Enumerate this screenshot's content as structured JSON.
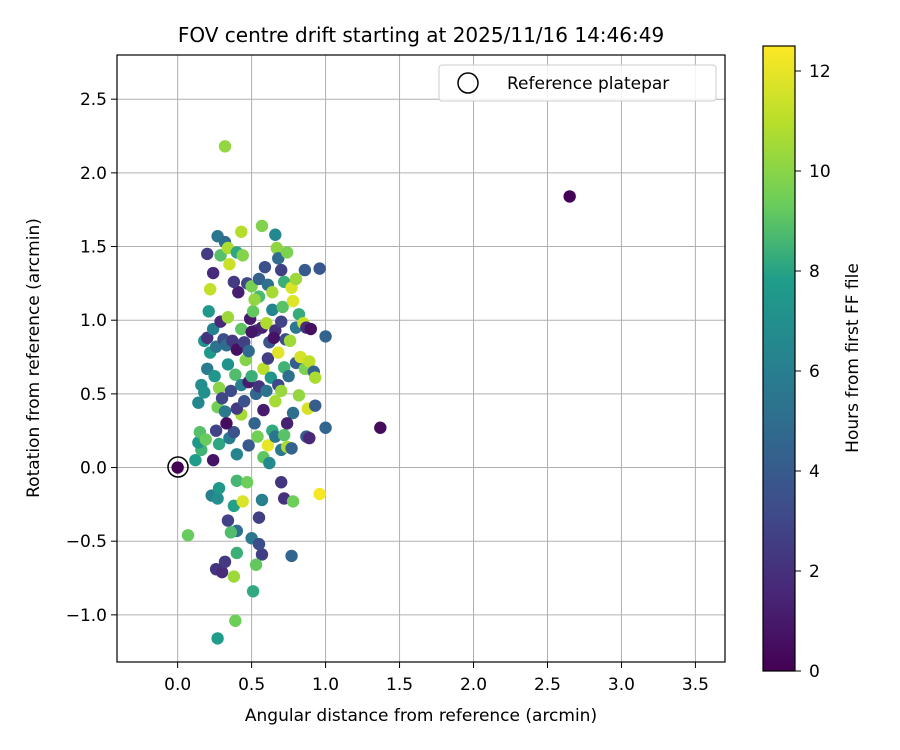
{
  "chart_data": {
    "type": "scatter",
    "title": "FOV centre drift starting at 2025/11/16 14:46:49",
    "xlabel": "Angular distance from reference (arcmin)",
    "ylabel": "Rotation from reference (arcmin)",
    "xlim": [
      -0.41,
      3.7
    ],
    "ylim": [
      -1.32,
      2.8
    ],
    "xticks": [
      0.0,
      0.5,
      1.0,
      1.5,
      2.0,
      2.5,
      3.0,
      3.5
    ],
    "yticks": [
      -1.0,
      -0.5,
      0.0,
      0.5,
      1.0,
      1.5,
      2.0,
      2.5
    ],
    "grid": true,
    "legend": {
      "position": "top-right",
      "entries": [
        "Reference platepar"
      ]
    },
    "reference_point": {
      "x": 0.0,
      "y": 0.0,
      "label": "Reference platepar"
    },
    "colorbar": {
      "label": "Hours from first FF file",
      "range": [
        0,
        12.5
      ],
      "ticks": [
        0,
        2,
        4,
        6,
        8,
        10,
        12
      ],
      "colormap": "viridis",
      "colors": [
        "#440154",
        "#482777",
        "#3f4a8a",
        "#31688e",
        "#26838f",
        "#1f9d8a",
        "#6cce5a",
        "#b6de2b",
        "#fee825"
      ]
    },
    "points": [
      [
        0.0,
        0.0,
        0.0
      ],
      [
        2.65,
        1.84,
        0.1
      ],
      [
        1.37,
        0.27,
        0.4
      ],
      [
        0.32,
        2.18,
        10.2
      ],
      [
        0.96,
        -0.18,
        12.3
      ],
      [
        0.07,
        -0.46,
        9.3
      ],
      [
        0.27,
        -1.16,
        7.8
      ],
      [
        0.39,
        -1.04,
        9.4
      ],
      [
        0.51,
        -0.84,
        8.2
      ],
      [
        0.26,
        -0.69,
        2.2
      ],
      [
        0.3,
        -0.71,
        1.8
      ],
      [
        0.32,
        -0.64,
        2.4
      ],
      [
        0.38,
        -0.74,
        10.4
      ],
      [
        0.4,
        -0.58,
        8.4
      ],
      [
        0.57,
        -0.59,
        2.6
      ],
      [
        0.53,
        -0.66,
        9.2
      ],
      [
        0.77,
        -0.6,
        4.6
      ],
      [
        0.34,
        -0.36,
        2.8
      ],
      [
        0.4,
        -0.43,
        5.1
      ],
      [
        0.36,
        -0.44,
        8.8
      ],
      [
        0.5,
        -0.48,
        5.6
      ],
      [
        0.55,
        -0.52,
        3.3
      ],
      [
        0.23,
        -0.19,
        6.0
      ],
      [
        0.27,
        -0.21,
        6.9
      ],
      [
        0.28,
        -0.14,
        7.6
      ],
      [
        0.38,
        -0.26,
        7.9
      ],
      [
        0.4,
        -0.09,
        8.6
      ],
      [
        0.44,
        -0.23,
        11.7
      ],
      [
        0.47,
        -0.1,
        9.4
      ],
      [
        0.55,
        -0.34,
        2.7
      ],
      [
        0.57,
        -0.22,
        6.0
      ],
      [
        0.7,
        -0.1,
        2.2
      ],
      [
        0.72,
        -0.21,
        2.0
      ],
      [
        0.78,
        -0.23,
        9.4
      ],
      [
        0.12,
        0.05,
        7.8
      ],
      [
        0.16,
        0.12,
        8.5
      ],
      [
        0.14,
        0.17,
        7.4
      ],
      [
        0.15,
        0.24,
        8.9
      ],
      [
        0.19,
        0.19,
        9.3
      ],
      [
        0.26,
        0.25,
        2.8
      ],
      [
        0.28,
        0.16,
        8.1
      ],
      [
        0.35,
        0.2,
        5.8
      ],
      [
        0.38,
        0.24,
        3.6
      ],
      [
        0.4,
        0.09,
        6.4
      ],
      [
        0.43,
        0.36,
        10.6
      ],
      [
        0.48,
        0.15,
        3.9
      ],
      [
        0.52,
        0.3,
        4.5
      ],
      [
        0.54,
        0.21,
        9.5
      ],
      [
        0.58,
        0.07,
        9.1
      ],
      [
        0.61,
        0.15,
        12.0
      ],
      [
        0.62,
        0.03,
        6.7
      ],
      [
        0.64,
        0.25,
        8.2
      ],
      [
        0.66,
        0.21,
        5.5
      ],
      [
        0.7,
        0.12,
        5.6
      ],
      [
        0.72,
        0.22,
        9.0
      ],
      [
        0.74,
        0.14,
        10.7
      ],
      [
        0.77,
        0.13,
        4.3
      ],
      [
        0.78,
        0.37,
        5.1
      ],
      [
        0.82,
        0.49,
        10.2
      ],
      [
        0.87,
        0.21,
        4.0
      ],
      [
        0.88,
        0.4,
        11.6
      ],
      [
        0.89,
        0.2,
        1.6
      ],
      [
        0.93,
        0.42,
        4.1
      ],
      [
        1.0,
        0.27,
        4.6
      ],
      [
        0.14,
        0.44,
        6.5
      ],
      [
        0.16,
        0.56,
        6.9
      ],
      [
        0.18,
        0.51,
        7.1
      ],
      [
        0.2,
        0.67,
        5.8
      ],
      [
        0.22,
        0.78,
        7.6
      ],
      [
        0.25,
        0.62,
        7.4
      ],
      [
        0.27,
        0.41,
        9.5
      ],
      [
        0.28,
        0.54,
        10.0
      ],
      [
        0.3,
        0.47,
        3.0
      ],
      [
        0.32,
        0.38,
        5.6
      ],
      [
        0.34,
        0.7,
        7.2
      ],
      [
        0.36,
        0.52,
        3.2
      ],
      [
        0.39,
        0.63,
        8.8
      ],
      [
        0.4,
        0.4,
        2.4
      ],
      [
        0.43,
        0.56,
        6.0
      ],
      [
        0.45,
        0.45,
        3.5
      ],
      [
        0.46,
        0.73,
        9.9
      ],
      [
        0.48,
        0.58,
        1.2
      ],
      [
        0.5,
        0.62,
        8.4
      ],
      [
        0.53,
        0.5,
        4.6
      ],
      [
        0.55,
        0.55,
        2.2
      ],
      [
        0.58,
        0.67,
        11.0
      ],
      [
        0.6,
        0.52,
        5.4
      ],
      [
        0.61,
        0.74,
        2.6
      ],
      [
        0.63,
        0.61,
        7.3
      ],
      [
        0.66,
        0.45,
        10.6
      ],
      [
        0.68,
        0.56,
        3.1
      ],
      [
        0.7,
        0.52,
        10.3
      ],
      [
        0.72,
        0.68,
        8.5
      ],
      [
        0.75,
        0.62,
        5.1
      ],
      [
        0.8,
        0.71,
        4.1
      ],
      [
        0.83,
        0.75,
        11.6
      ],
      [
        0.86,
        0.67,
        9.7
      ],
      [
        0.89,
        0.72,
        11.1
      ],
      [
        0.92,
        0.65,
        4.4
      ],
      [
        0.93,
        0.61,
        10.7
      ],
      [
        0.18,
        0.86,
        7.3
      ],
      [
        0.2,
        0.88,
        2.1
      ],
      [
        0.21,
        1.06,
        7.5
      ],
      [
        0.24,
        0.94,
        6.1
      ],
      [
        0.26,
        0.82,
        5.4
      ],
      [
        0.29,
        0.99,
        1.6
      ],
      [
        0.31,
        0.87,
        3.4
      ],
      [
        0.33,
        0.83,
        5.0
      ],
      [
        0.34,
        1.02,
        10.4
      ],
      [
        0.37,
        0.86,
        2.3
      ],
      [
        0.4,
        0.8,
        0.6
      ],
      [
        0.41,
        1.19,
        1.2
      ],
      [
        0.43,
        0.94,
        9.1
      ],
      [
        0.45,
        0.85,
        2.7
      ],
      [
        0.48,
        0.79,
        4.8
      ],
      [
        0.49,
        1.01,
        1.0
      ],
      [
        0.51,
        1.06,
        9.2
      ],
      [
        0.53,
        0.93,
        2.5
      ],
      [
        0.55,
        1.16,
        8.7
      ],
      [
        0.57,
        0.95,
        1.4
      ],
      [
        0.6,
        0.98,
        10.8
      ],
      [
        0.62,
        0.85,
        3.8
      ],
      [
        0.64,
        1.07,
        6.3
      ],
      [
        0.66,
        0.93,
        1.9
      ],
      [
        0.68,
        0.78,
        11.9
      ],
      [
        0.7,
        0.99,
        2.9
      ],
      [
        0.71,
        1.09,
        9.0
      ],
      [
        0.73,
        0.87,
        3.4
      ],
      [
        0.76,
        0.86,
        10.5
      ],
      [
        0.78,
        1.13,
        11.8
      ],
      [
        0.8,
        0.95,
        5.6
      ],
      [
        0.82,
        1.04,
        8.3
      ],
      [
        0.85,
        0.98,
        11.3
      ],
      [
        0.87,
        0.95,
        1.8
      ],
      [
        1.0,
        0.89,
        4.5
      ],
      [
        0.2,
        1.45,
        2.5
      ],
      [
        0.22,
        1.21,
        11.2
      ],
      [
        0.24,
        1.32,
        1.7
      ],
      [
        0.27,
        1.57,
        5.5
      ],
      [
        0.29,
        1.44,
        8.9
      ],
      [
        0.32,
        1.53,
        5.0
      ],
      [
        0.34,
        1.49,
        10.7
      ],
      [
        0.35,
        1.38,
        11.4
      ],
      [
        0.38,
        1.26,
        2.4
      ],
      [
        0.4,
        1.46,
        8.1
      ],
      [
        0.43,
        1.6,
        10.9
      ],
      [
        0.44,
        1.44,
        9.9
      ],
      [
        0.47,
        1.25,
        3.1
      ],
      [
        0.5,
        1.23,
        9.6
      ],
      [
        0.52,
        1.14,
        10.2
      ],
      [
        0.55,
        1.28,
        4.4
      ],
      [
        0.57,
        1.64,
        9.8
      ],
      [
        0.59,
        1.36,
        3.5
      ],
      [
        0.61,
        1.24,
        5.2
      ],
      [
        0.64,
        1.19,
        10.6
      ],
      [
        0.66,
        1.58,
        6.6
      ],
      [
        0.67,
        1.49,
        10.1
      ],
      [
        0.68,
        1.42,
        4.9
      ],
      [
        0.7,
        1.34,
        2.7
      ],
      [
        0.72,
        1.26,
        8.4
      ],
      [
        0.74,
        1.46,
        9.7
      ],
      [
        0.77,
        1.22,
        11.7
      ],
      [
        0.8,
        1.28,
        10.4
      ],
      [
        0.86,
        1.34,
        4.0
      ],
      [
        0.96,
        1.35,
        3.8
      ],
      [
        0.24,
        0.05,
        0.8
      ],
      [
        0.33,
        0.3,
        0.5
      ],
      [
        0.5,
        0.92,
        0.9
      ],
      [
        0.58,
        0.39,
        1.1
      ],
      [
        0.65,
        0.88,
        0.7
      ],
      [
        0.74,
        0.3,
        1.3
      ],
      [
        0.9,
        0.94,
        0.6
      ]
    ]
  }
}
